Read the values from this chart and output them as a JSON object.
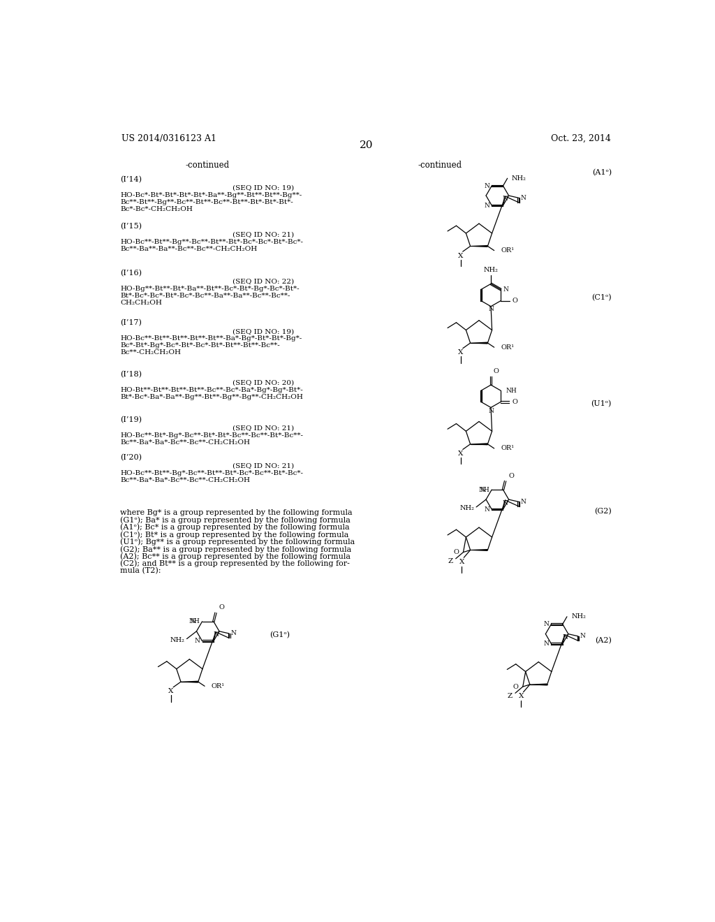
{
  "page_number": "20",
  "patent_number": "US 2014/0316123 A1",
  "patent_date": "Oct. 23, 2014",
  "background_color": "#ffffff",
  "text_color": "#000000",
  "left_blocks": [
    {
      "label": "(I’14)",
      "seq_id": "(SEQ ID NO: 19)",
      "lines": [
        "HO-Bc*-Bt*-Bt*-Bt*-Bt*-Ba**-Bg**-Bt**-Bt**-Bg**-",
        "Bc**-Bt**-Bg**-Bc**-Bt**-Bc**-Bt**-Bt*-Bt*-Bt*-",
        "Bc*-Bc*-CH₂CH₂OH"
      ]
    },
    {
      "label": "(I’15)",
      "seq_id": "(SEQ ID NO: 21)",
      "lines": [
        "HO-Bc**-Bt**-Bg**-Bc**-Bt**-Bt*-Bc*-Bc*-Bt*-Bc*-",
        "Bc**-Ba**-Ba**-Bc**-Bc**-CH₂CH₂OH"
      ]
    },
    {
      "label": "(I’16)",
      "seq_id": "(SEQ ID NO: 22)",
      "lines": [
        "HO-Bg**-Bt**-Bt*-Ba**-Bt**-Bc*-Bt*-Bg*-Bc*-Bt*-",
        "Bt*-Bc*-Bc*-Bt*-Bc*-Bc**-Ba**-Ba**-Bc**-Bc**-",
        "CH₂CH₂OH"
      ]
    },
    {
      "label": "(I’17)",
      "seq_id": "(SEQ ID NO: 19)",
      "lines": [
        "HO-Bc**-Bt**-Bt**-Bt**-Bt**-Ba*-Bg*-Bt*-Bt*-Bg*-",
        "Bc*-Bt*-Bg*-Bc*-Bt*-Bc*-Bt*-Bt**-Bt**-Bc**-",
        "Bc**-CH₂CH₂OH"
      ]
    },
    {
      "label": "(I’18)",
      "seq_id": "(SEQ ID NO: 20)",
      "lines": [
        "HO-Bt**-Bt**-Bt**-Bt**-Bc**-Bc*-Ba*-Bg*-Bg*-Bt*-",
        "Bt*-Bc*-Ba*-Ba**-Bg**-Bt**-Bg**-Bg**-CH₂CH₂OH"
      ]
    },
    {
      "label": "(I’19)",
      "seq_id": "(SEQ ID NO: 21)",
      "lines": [
        "HO-Bc**-Bt*-Bg*-Bc**-Bt*-Bt*-Bc**-Bc**-Bt*-Bc**-",
        "Bc**-Ba*-Ba*-Bc**-Bc**-CH₂CH₂OH"
      ]
    },
    {
      "label": "(I’20)",
      "seq_id": "(SEQ ID NO: 21)",
      "lines": [
        "HO-Bc**-Bt**-Bg*-Bc**-Bt**-Bt*-Bc*-Bc**-Bt*-Bc*-",
        "Bc**-Ba*-Ba*-Bc**-Bc**-CH₂CH₂OH"
      ]
    }
  ],
  "description_text": [
    "where Bg* is a group represented by the following formula",
    "(G1ᵒ); Ba* is a group represented by the following formula",
    "(A1ᵒ); Bc* is a group represented by the following formula",
    "(C1ᵒ); Bt* is a group represented by the following formula",
    "(U1ᵒ); Bg** is a group represented by the following formula",
    "(G2); Ba** is a group represented by the following formula",
    "(A2); Bc** is a group represented by the following formula",
    "(C2); and Bt** is a group represented by the following for-",
    "mula (T2):"
  ]
}
